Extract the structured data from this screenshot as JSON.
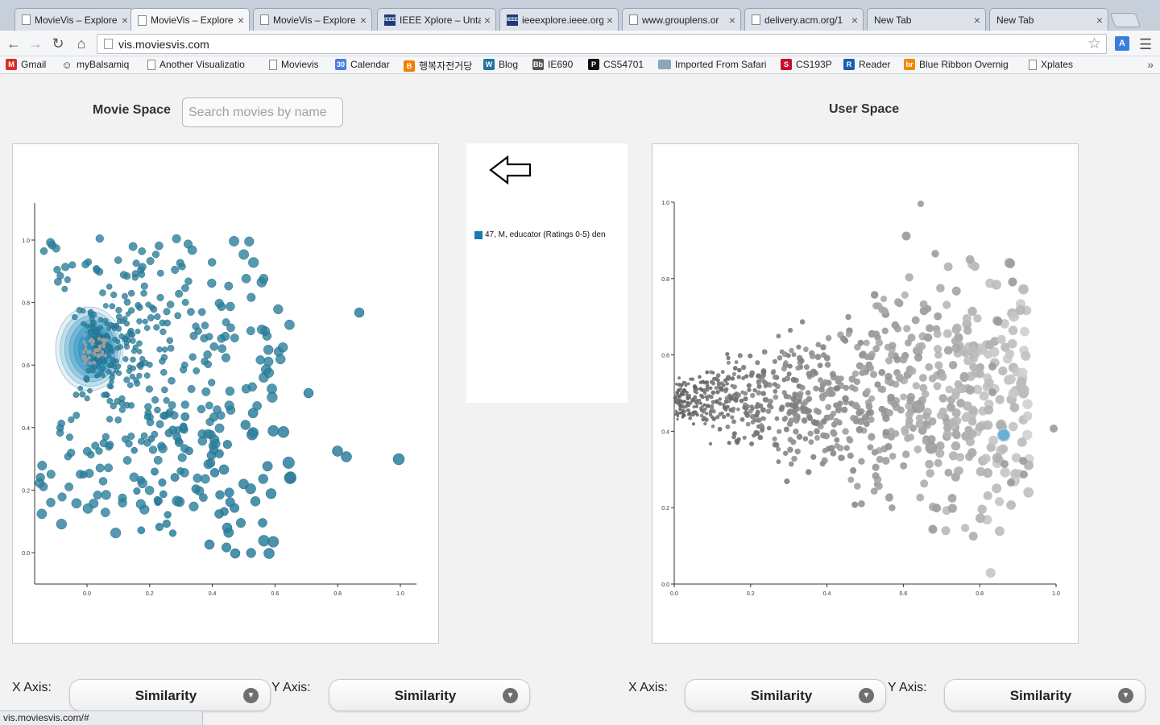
{
  "browser": {
    "tabs": [
      {
        "title": "MovieVis – Explore",
        "icon": "page"
      },
      {
        "title": "MovieVis – Explore",
        "icon": "page",
        "active": true
      },
      {
        "title": "MovieVis – Explore",
        "icon": "page"
      },
      {
        "title": "IEEE Xplore – Untal",
        "icon": "ieee"
      },
      {
        "title": "ieeexplore.ieee.org",
        "icon": "ieee"
      },
      {
        "title": "www.grouplens.or",
        "icon": "page"
      },
      {
        "title": "delivery.acm.org/1",
        "icon": "page"
      },
      {
        "title": "New Tab",
        "icon": "none"
      },
      {
        "title": "New Tab",
        "icon": "none"
      }
    ],
    "url": "vis.moviesvis.com",
    "bookmarks": [
      {
        "label": "Gmail",
        "icon": "gmail"
      },
      {
        "label": "myBalsamiq",
        "icon": "smiley"
      },
      {
        "label": "Another Visualizatio",
        "icon": "page"
      },
      {
        "label": "Movievis",
        "icon": "page"
      },
      {
        "label": "Calendar",
        "icon": "calendar"
      },
      {
        "label": "행복자전거당",
        "icon": "blogger"
      },
      {
        "label": "Blog",
        "icon": "wordpress"
      },
      {
        "label": "IE690",
        "icon": "bb"
      },
      {
        "label": "CS54701",
        "icon": "p"
      },
      {
        "label": "Imported From Safari",
        "icon": "folder"
      },
      {
        "label": "CS193P",
        "icon": "s"
      },
      {
        "label": "Reader",
        "icon": "reader"
      },
      {
        "label": "Blue Ribbon Overnig",
        "icon": "ribbon"
      },
      {
        "label": "Xplates",
        "icon": "page"
      }
    ],
    "status_url": "vis.moviesvis.com/#"
  },
  "movie_space": {
    "title": "Movie Space",
    "search_placeholder": "Search movies by name",
    "x_ticks": [
      "0.0",
      "0.2",
      "0.4",
      "0.6",
      "0.8",
      "1.0"
    ],
    "y_ticks": [
      "0.0",
      "0.2",
      "0.4",
      "0.6",
      "0.8",
      "1.0"
    ],
    "point_color": "#2b7f9e",
    "density_color": "#1a8fc0",
    "highlight_color": "#9e9e9e"
  },
  "legend": {
    "icon": "arrow-left-icon",
    "item": "47, M, educator (Ratings 0-5) den",
    "swatch_color": "#1a7ab5"
  },
  "user_space": {
    "title": "User Space",
    "x_ticks": [
      "0.0",
      "0.2",
      "0.4",
      "0.6",
      "0.8",
      "1.0"
    ],
    "y_ticks": [
      "0.0",
      "0.2",
      "0.4",
      "0.6",
      "0.8",
      "1.0"
    ],
    "point_color": "#707070",
    "selected_color": "#6aaed0"
  },
  "controls": {
    "x_axis_label": "X Axis:",
    "y_axis_label": "Y Axis:",
    "movie_x": "Similarity",
    "movie_y": "Similarity",
    "user_x": "Similarity",
    "user_y": "Similarity"
  }
}
